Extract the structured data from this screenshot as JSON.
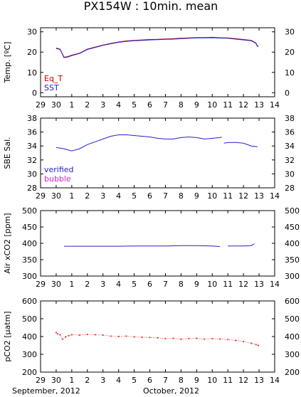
{
  "title": "PX154W : 10min. mean",
  "x_ticks": [
    "29",
    "30",
    "1",
    "2",
    "3",
    "4",
    "5",
    "6",
    "7",
    "8",
    "9",
    "10",
    "11",
    "12",
    "13",
    "14"
  ],
  "month_labels": [
    "September, 2012",
    "October, 2012"
  ],
  "chart_data": [
    {
      "type": "line",
      "ylabel": "Temp. [ºC]",
      "ylim": [
        -2,
        32
      ],
      "yticks": [
        "0",
        "10",
        "20",
        "30"
      ],
      "legend": [
        "Eq_T",
        "SST"
      ],
      "legend_colors": [
        "#cc0000",
        "#2222cc"
      ],
      "legend_placement": "bottom-left",
      "series": [
        {
          "name": "Eq_T",
          "color": "#cc0000",
          "points": [
            [
              30.0,
              22.0
            ],
            [
              30.25,
              21.5
            ],
            [
              30.5,
              17.5
            ],
            [
              30.75,
              17.8
            ],
            [
              1.0,
              18.5
            ],
            [
              1.5,
              19.5
            ],
            [
              2.0,
              21.5
            ],
            [
              2.5,
              22.5
            ],
            [
              3.0,
              23.5
            ],
            [
              3.5,
              24.3
            ],
            [
              4.0,
              25.0
            ],
            [
              4.5,
              25.5
            ],
            [
              5.0,
              25.8
            ],
            [
              5.5,
              26.0
            ],
            [
              6.0,
              26.2
            ],
            [
              6.5,
              26.3
            ],
            [
              7.0,
              26.5
            ],
            [
              7.5,
              26.6
            ],
            [
              8.0,
              26.8
            ],
            [
              8.5,
              27.0
            ],
            [
              9.0,
              27.2
            ],
            [
              9.5,
              27.2
            ],
            [
              10.0,
              27.3
            ],
            [
              10.5,
              27.1
            ],
            [
              11.0,
              27.0
            ],
            [
              11.5,
              26.6
            ],
            [
              12.0,
              26.2
            ],
            [
              12.5,
              25.8
            ],
            [
              12.8,
              24.5
            ],
            [
              12.85,
              23.5
            ],
            [
              12.95,
              22.8
            ]
          ]
        },
        {
          "name": "SST",
          "color": "#2222cc",
          "points": [
            [
              30.0,
              21.8
            ],
            [
              30.25,
              21.3
            ],
            [
              30.5,
              17.3
            ],
            [
              30.75,
              17.6
            ],
            [
              1.0,
              18.3
            ],
            [
              1.5,
              19.3
            ],
            [
              2.0,
              21.3
            ],
            [
              2.5,
              22.3
            ],
            [
              3.0,
              23.3
            ],
            [
              3.5,
              24.1
            ],
            [
              4.0,
              24.8
            ],
            [
              4.5,
              25.3
            ],
            [
              5.0,
              25.6
            ],
            [
              5.5,
              25.8
            ],
            [
              6.0,
              26.0
            ],
            [
              6.5,
              26.1
            ],
            [
              7.0,
              26.3
            ],
            [
              7.5,
              26.4
            ],
            [
              8.0,
              26.6
            ],
            [
              8.5,
              26.8
            ],
            [
              9.0,
              27.0
            ],
            [
              9.5,
              27.0
            ],
            [
              10.0,
              27.1
            ],
            [
              10.5,
              26.9
            ],
            [
              11.0,
              26.8
            ],
            [
              11.5,
              26.4
            ],
            [
              12.0,
              26.0
            ],
            [
              12.5,
              25.6
            ],
            [
              12.8,
              24.3
            ],
            [
              12.85,
              23.3
            ],
            [
              12.95,
              22.6
            ]
          ]
        }
      ]
    },
    {
      "type": "line",
      "ylabel": "SBE Sal.",
      "ylim": [
        28,
        38
      ],
      "yticks": [
        "28",
        "30",
        "32",
        "34",
        "36",
        "38"
      ],
      "legend": [
        "verified",
        "bubble"
      ],
      "legend_colors": [
        "#2222cc",
        "#cc22cc"
      ],
      "legend_placement": "bottom-left",
      "series": [
        {
          "name": "verified",
          "color": "#2222cc",
          "segments": [
            [
              [
                30.0,
                33.8
              ],
              [
                30.5,
                33.6
              ],
              [
                1.0,
                33.3
              ],
              [
                1.5,
                33.6
              ],
              [
                2.0,
                34.2
              ],
              [
                2.5,
                34.6
              ],
              [
                3.0,
                35.0
              ],
              [
                3.5,
                35.4
              ],
              [
                4.0,
                35.6
              ],
              [
                4.5,
                35.6
              ],
              [
                5.0,
                35.5
              ],
              [
                5.5,
                35.4
              ],
              [
                6.0,
                35.3
              ],
              [
                6.5,
                35.1
              ],
              [
                7.0,
                35.0
              ],
              [
                7.5,
                35.0
              ],
              [
                8.0,
                35.2
              ],
              [
                8.5,
                35.3
              ],
              [
                9.0,
                35.2
              ],
              [
                9.5,
                35.0
              ],
              [
                10.0,
                35.1
              ],
              [
                10.5,
                35.2
              ],
              [
                10.6,
                35.3
              ]
            ],
            [
              [
                10.75,
                34.4
              ],
              [
                11.0,
                34.5
              ],
              [
                11.5,
                34.5
              ],
              [
                12.0,
                34.4
              ],
              [
                12.5,
                34.0
              ],
              [
                12.9,
                33.9
              ]
            ]
          ]
        }
      ]
    },
    {
      "type": "line",
      "ylabel": "Air xCO2 [ppm]",
      "ylim": [
        300,
        500
      ],
      "yticks": [
        "300",
        "350",
        "400",
        "450",
        "500"
      ],
      "series": [
        {
          "name": "",
          "color": "#2222cc",
          "segments": [
            [
              [
                30.5,
                391
              ],
              [
                1.0,
                391
              ],
              [
                2.0,
                391
              ],
              [
                3.0,
                391
              ],
              [
                4.0,
                391
              ],
              [
                5.0,
                392
              ],
              [
                6.0,
                392
              ],
              [
                7.0,
                392
              ],
              [
                8.0,
                393
              ],
              [
                9.0,
                393
              ],
              [
                10.0,
                392
              ],
              [
                10.5,
                390
              ]
            ],
            [
              [
                11.0,
                392
              ],
              [
                11.5,
                392
              ],
              [
                12.0,
                392
              ],
              [
                12.5,
                393
              ],
              [
                12.7,
                399
              ]
            ]
          ]
        }
      ]
    },
    {
      "type": "scatter",
      "ylabel": "pCO2 [µatm]",
      "ylim": [
        200,
        600
      ],
      "yticks": [
        "200",
        "300",
        "400",
        "500",
        "600"
      ],
      "series": [
        {
          "name": "",
          "color": "#ee3333",
          "points": [
            [
              30.0,
              422
            ],
            [
              30.1,
              415
            ],
            [
              30.25,
              410
            ],
            [
              30.4,
              385
            ],
            [
              30.6,
              398
            ],
            [
              30.8,
              405
            ],
            [
              1.0,
              410
            ],
            [
              1.5,
              408
            ],
            [
              2.0,
              412
            ],
            [
              2.5,
              410
            ],
            [
              3.0,
              408
            ],
            [
              3.5,
              402
            ],
            [
              4.0,
              400
            ],
            [
              4.5,
              402
            ],
            [
              5.0,
              398
            ],
            [
              5.5,
              396
            ],
            [
              6.0,
              395
            ],
            [
              6.5,
              393
            ],
            [
              7.0,
              388
            ],
            [
              7.5,
              390
            ],
            [
              8.0,
              385
            ],
            [
              8.5,
              388
            ],
            [
              9.0,
              390
            ],
            [
              9.5,
              385
            ],
            [
              10.0,
              388
            ],
            [
              10.5,
              386
            ],
            [
              11.0,
              383
            ],
            [
              11.5,
              378
            ],
            [
              12.0,
              372
            ],
            [
              12.5,
              362
            ],
            [
              12.8,
              355
            ],
            [
              12.95,
              350
            ]
          ]
        }
      ]
    }
  ]
}
